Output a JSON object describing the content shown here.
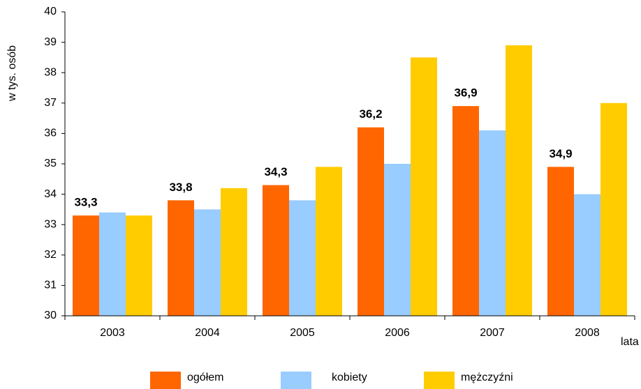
{
  "chart_data": {
    "type": "bar",
    "x_label": "lata",
    "y_label": "w tys. osób",
    "categories": [
      "2003",
      "2004",
      "2005",
      "2006",
      "2007",
      "2008"
    ],
    "series": [
      {
        "name": "ogółem",
        "color": "#ff6600",
        "values": [
          33.3,
          33.8,
          34.3,
          36.2,
          36.9,
          34.9
        ],
        "value_labels": [
          "33,3",
          "33,8",
          "34,3",
          "36,2",
          "36,9",
          "34,9"
        ]
      },
      {
        "name": "kobiety",
        "color": "#99ccff",
        "values": [
          33.4,
          33.5,
          33.8,
          35.0,
          36.1,
          34.0
        ]
      },
      {
        "name": "mężczyźni",
        "color": "#ffcc00",
        "values": [
          33.3,
          34.2,
          34.9,
          38.5,
          38.9,
          37.0
        ]
      }
    ],
    "ylim": [
      30,
      40
    ],
    "yticks": [
      30,
      31,
      32,
      33,
      34,
      35,
      36,
      37,
      38,
      39,
      40
    ],
    "grid": false
  }
}
